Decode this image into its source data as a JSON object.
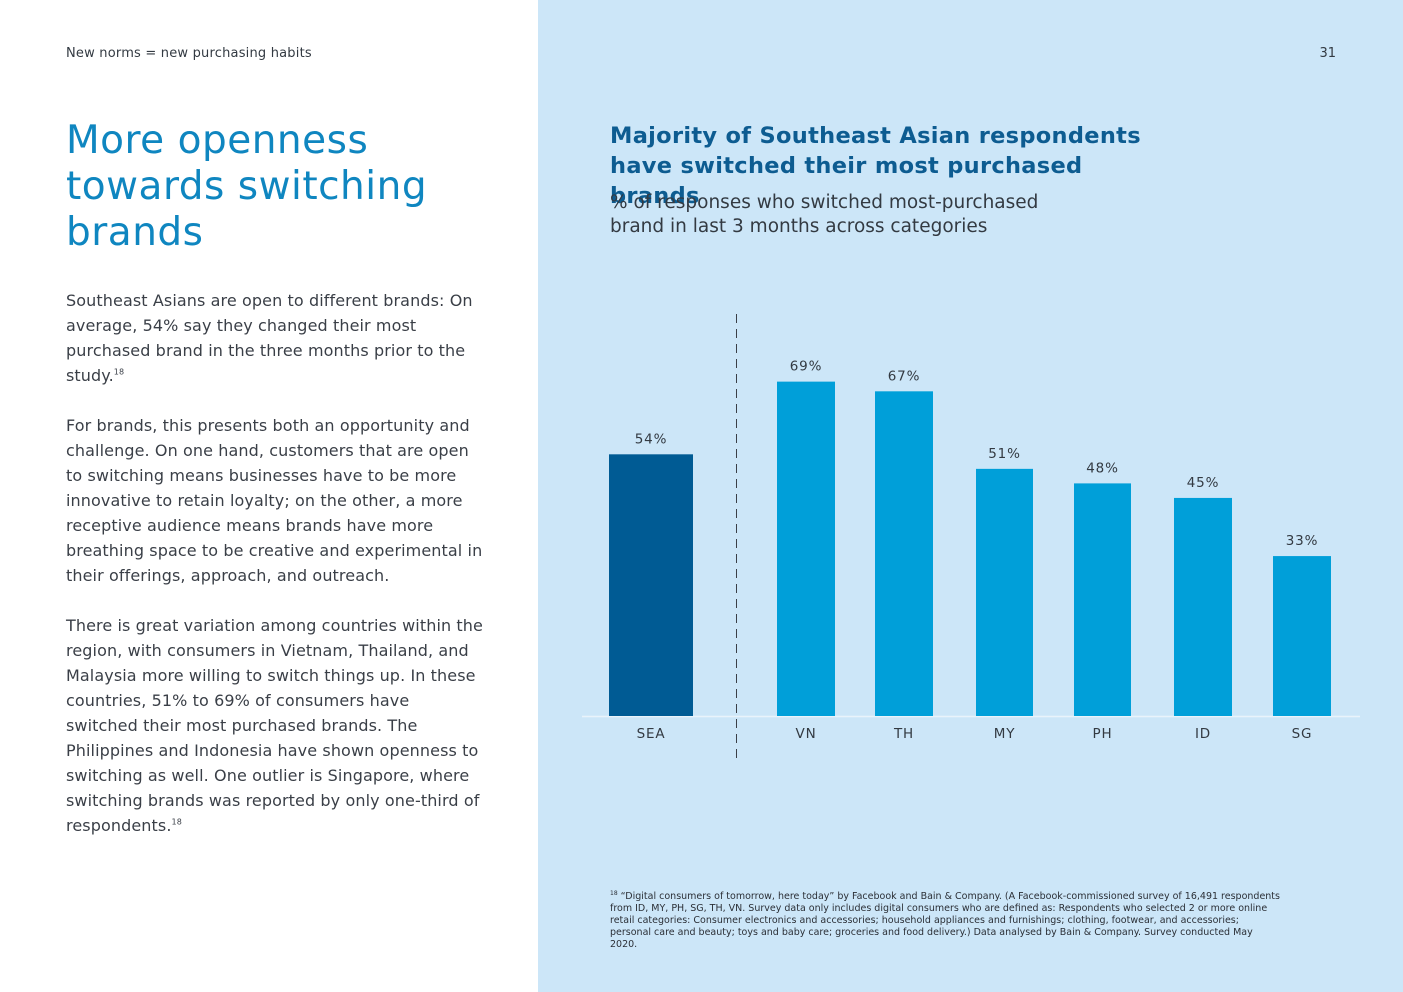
{
  "header": {
    "section_label": "New norms = new purchasing habits",
    "page_number": "31"
  },
  "left": {
    "headline": "More openness towards switching brands",
    "paragraphs": [
      {
        "text": "Southeast Asians are open to different brands: On average, 54% say they changed their most purchased brand in the three months prior to the study.",
        "ref": "18"
      },
      {
        "text": "For brands, this presents both an opportunity and challenge. On one hand, customers that are open to switching means businesses have to be more innovative to retain loyalty; on the other, a more receptive audience means brands have more breathing space to be creative and experimental in their offerings, approach, and outreach.",
        "ref": ""
      },
      {
        "text": "There is great variation among countries within the region, with consumers in Vietnam, Thailand, and Malaysia more willing to switch things up. In these countries, 51% to 69% of consumers have switched their most purchased brands. The Philippines and Indonesia have shown openness to switching as well. One outlier is Singapore, where switching brands was reported by only one-third of respondents.",
        "ref": "18"
      }
    ]
  },
  "chart_data": {
    "type": "bar",
    "title": "Majority of Southeast Asian respondents have switched their most purchased brands",
    "subtitle": "% of responses who switched most-purchased brand in last 3 months across categories",
    "categories": [
      "SEA",
      "VN",
      "TH",
      "MY",
      "PH",
      "ID",
      "SG"
    ],
    "values": [
      54,
      69,
      67,
      51,
      48,
      45,
      33
    ],
    "value_labels": [
      "54%",
      "69%",
      "67%",
      "51%",
      "48%",
      "45%",
      "33%"
    ],
    "highlight_index": 0,
    "divider_after_index": 0,
    "ylim": [
      0,
      100
    ],
    "colors": {
      "highlight": "#005b94",
      "bars": "#009fd9",
      "panel": "#cce6f8",
      "baseline": "#e9f3fb",
      "divider": "#3a3f47"
    }
  },
  "footnote": {
    "ref": "18",
    "text": "“Digital consumers of tomorrow, here today” by Facebook and Bain & Company. (A Facebook-commissioned survey of 16,491 respondents from ID, MY, PH, SG, TH, VN. Survey data only includes digital consumers who are defined as: Respondents who selected 2 or more online retail categories: Consumer electronics and accessories; household appliances and furnishings; clothing, footwear, and accessories; personal care and beauty; toys and baby care; groceries and food delivery.) Data analysed by Bain & Company. Survey conducted May 2020."
  }
}
